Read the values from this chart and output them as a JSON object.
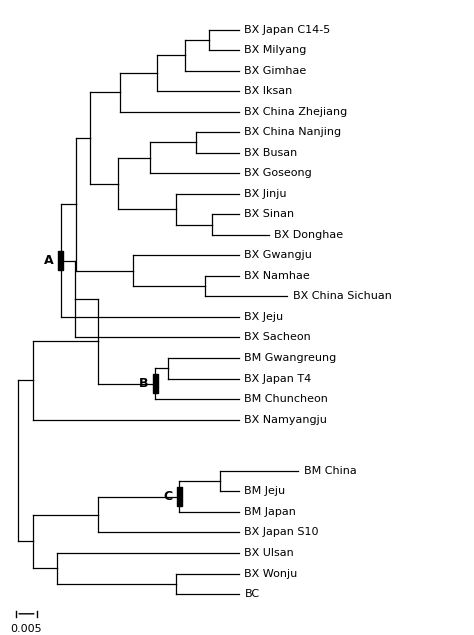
{
  "taxa": [
    "BX Japan C14-5",
    "BX Milyang",
    "BX Gimhae",
    "BX Iksan",
    "BX China Zhejiang",
    "BX China Nanjing",
    "BX Busan",
    "BX Goseong",
    "BX Jinju",
    "BX Sinan",
    "BX Donghae",
    "BX Gwangju",
    "BX Namhae",
    "BX China Sichuan",
    "BX Jeju",
    "BX Sacheon",
    "BM Gwangreung",
    "BX Japan T4",
    "BM Chuncheon",
    "BX Namyangju",
    "BM China",
    "BM Jeju",
    "BM Japan",
    "BX Japan S10",
    "BX Ulsan",
    "BX Wonju",
    "BC"
  ],
  "scale_bar_label": "0.005",
  "label_fontsize": 8.0,
  "line_width": 0.9,
  "background_color": "#ffffff"
}
